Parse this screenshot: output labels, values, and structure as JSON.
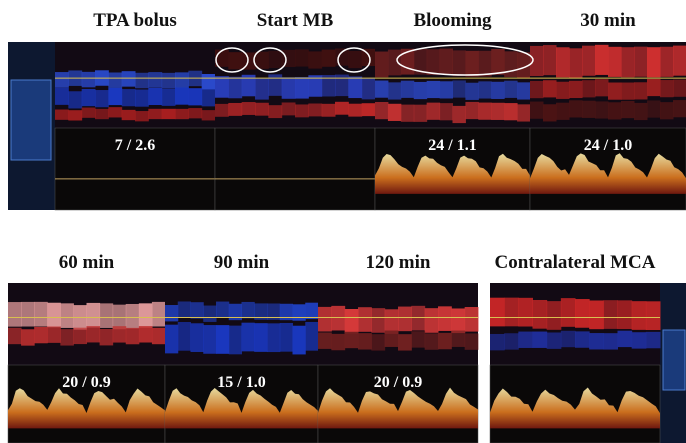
{
  "top_row": {
    "panels": [
      {
        "label": "TPA bolus",
        "measurement": "7 / 2.6"
      },
      {
        "label": "Start MB"
      },
      {
        "label": "Blooming",
        "measurement": "24 / 1.1"
      },
      {
        "label": "30 min",
        "measurement": "24 / 1.0"
      }
    ]
  },
  "bottom_row": {
    "panels": [
      {
        "label": "60 min",
        "measurement": "20 / 0.9"
      },
      {
        "label": "90 min",
        "measurement": "15 / 1.0"
      },
      {
        "label": "120 min",
        "measurement": "20 / 0.9"
      },
      {
        "label": "Contralateral MCA"
      }
    ]
  }
}
